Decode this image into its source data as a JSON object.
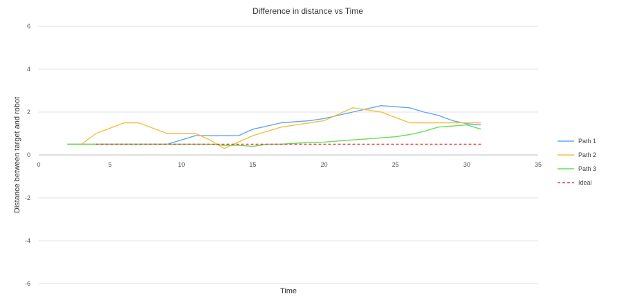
{
  "chart_data": {
    "type": "line",
    "title": "Difference in distance vs Time",
    "xlabel": "Time",
    "ylabel": "Distance between target and robot",
    "xlim": [
      0,
      35
    ],
    "ylim": [
      -6,
      6
    ],
    "xticks": [
      0,
      5,
      10,
      15,
      20,
      25,
      30,
      35
    ],
    "yticks": [
      -6,
      -4,
      -2,
      0,
      2,
      4,
      6
    ],
    "grid": true,
    "legend": "right",
    "series": [
      {
        "name": "Path 1",
        "color": "#5ea8f0",
        "dash": "",
        "x": [
          2,
          3,
          4,
          5,
          6,
          7,
          8,
          9,
          10,
          11,
          12,
          13,
          14,
          15,
          16,
          17,
          18,
          19,
          20,
          21,
          22,
          23,
          24,
          25,
          26,
          27,
          28,
          29,
          30,
          31
        ],
        "y": [
          0.5,
          0.5,
          0.5,
          0.5,
          0.5,
          0.5,
          0.5,
          0.5,
          0.7,
          0.9,
          0.9,
          0.9,
          0.9,
          1.2,
          1.35,
          1.5,
          1.55,
          1.6,
          1.7,
          1.85,
          2.0,
          2.15,
          2.3,
          2.25,
          2.2,
          2.0,
          1.85,
          1.6,
          1.45,
          1.4
        ]
      },
      {
        "name": "Path 2",
        "color": "#f7be3d",
        "dash": "",
        "x": [
          2,
          3,
          4,
          5,
          6,
          7,
          8,
          9,
          10,
          11,
          12,
          13,
          14,
          15,
          16,
          17,
          18,
          19,
          20,
          21,
          22,
          23,
          24,
          25,
          26,
          27,
          28,
          29,
          30,
          31
        ],
        "y": [
          0.5,
          0.5,
          1.0,
          1.25,
          1.5,
          1.5,
          1.25,
          1.0,
          1.0,
          1.0,
          0.7,
          0.3,
          0.6,
          0.9,
          1.1,
          1.3,
          1.4,
          1.5,
          1.6,
          1.9,
          2.2,
          2.1,
          2.0,
          1.75,
          1.5,
          1.5,
          1.5,
          1.5,
          1.5,
          1.5
        ]
      },
      {
        "name": "Path 3",
        "color": "#66dd55",
        "dash": "",
        "x": [
          2,
          3,
          4,
          5,
          6,
          7,
          8,
          9,
          10,
          11,
          12,
          13,
          14,
          15,
          16,
          17,
          18,
          19,
          20,
          21,
          22,
          23,
          24,
          25,
          26,
          27,
          28,
          29,
          30,
          31
        ],
        "y": [
          0.5,
          0.5,
          0.5,
          0.5,
          0.5,
          0.5,
          0.5,
          0.5,
          0.5,
          0.5,
          0.5,
          0.45,
          0.45,
          0.4,
          0.5,
          0.5,
          0.55,
          0.58,
          0.6,
          0.65,
          0.7,
          0.75,
          0.8,
          0.85,
          0.95,
          1.1,
          1.3,
          1.35,
          1.4,
          1.2
        ]
      },
      {
        "name": "Ideal",
        "color": "#e53a3a",
        "dash": "4,3",
        "x": [
          4,
          31
        ],
        "y": [
          0.5,
          0.5
        ]
      }
    ]
  }
}
